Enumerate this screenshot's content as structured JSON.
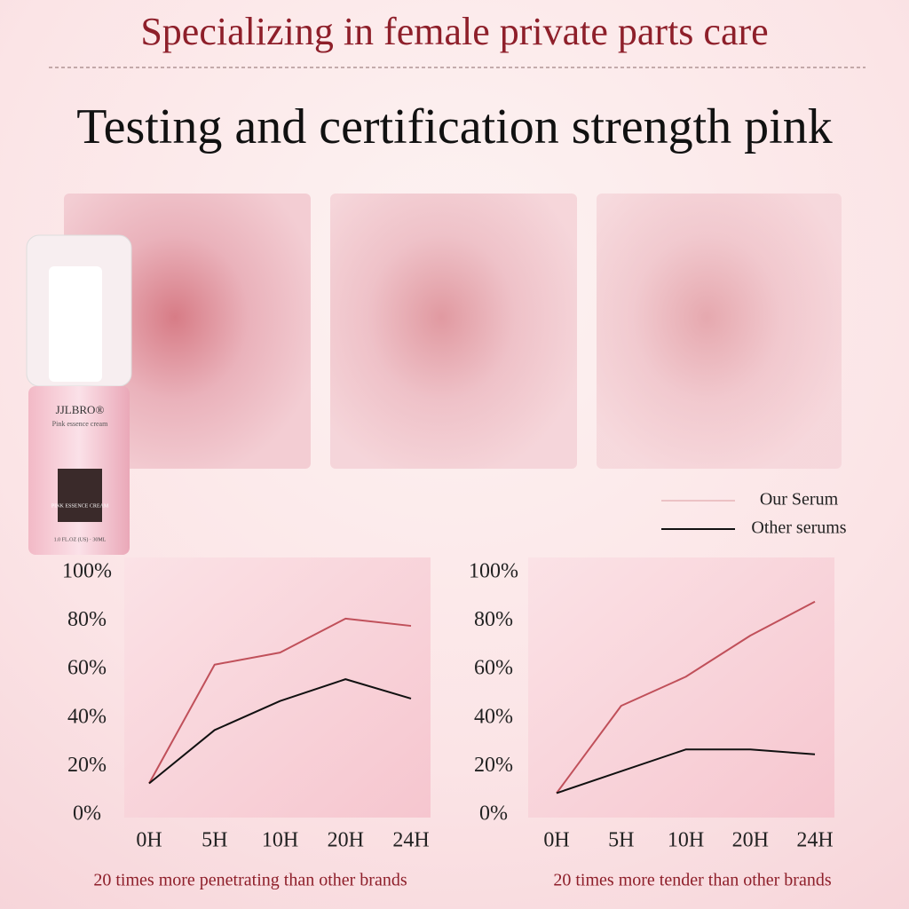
{
  "header": {
    "tagline": "Specializing in female private parts care",
    "title": "Testing and certification strength pink"
  },
  "product": {
    "brand": "JJLBRO®",
    "subtitle": "Pink essence cream",
    "name": "PINK ESSENCE CREAM",
    "volume": "1.0 FL.OZ (US) · 30ML"
  },
  "legend": {
    "colors": [
      "#c0505a",
      "#111111"
    ]
  },
  "chart_data": [
    {
      "type": "line",
      "caption": "20 times more penetrating than other brands",
      "categories": [
        "0H",
        "5H",
        "10H",
        "20H",
        "24H"
      ],
      "ylim": [
        0,
        100
      ],
      "yticks": [
        {
          "value": 0,
          "label": "0%"
        },
        {
          "value": 20,
          "label": "20%"
        },
        {
          "value": 40,
          "label": "40%"
        },
        {
          "value": 60,
          "label": "60%"
        },
        {
          "value": 80,
          "label": "80%"
        },
        {
          "value": 100,
          "label": "100%"
        }
      ],
      "series": [
        {
          "name": "Our Serum",
          "color": "#c0505a",
          "values": [
            13,
            62,
            67,
            81,
            78
          ]
        },
        {
          "name": "Other serums",
          "color": "#111111",
          "values": [
            13,
            35,
            47,
            56,
            48
          ]
        }
      ]
    },
    {
      "type": "line",
      "caption": "20 times more tender than other brands",
      "categories": [
        "0H",
        "5H",
        "10H",
        "20H",
        "24H"
      ],
      "ylim": [
        0,
        100
      ],
      "yticks": [
        {
          "value": 0,
          "label": "0%"
        },
        {
          "value": 20,
          "label": "20%"
        },
        {
          "value": 40,
          "label": "40%"
        },
        {
          "value": 60,
          "label": "60%"
        },
        {
          "value": 80,
          "label": "80%"
        },
        {
          "value": 100,
          "label": "100%"
        }
      ],
      "series": [
        {
          "name": "Our Serum",
          "color": "#c0505a",
          "values": [
            9,
            45,
            57,
            74,
            88
          ]
        },
        {
          "name": "Other serums",
          "color": "#111111",
          "values": [
            9,
            18,
            27,
            27,
            25
          ]
        }
      ]
    }
  ]
}
